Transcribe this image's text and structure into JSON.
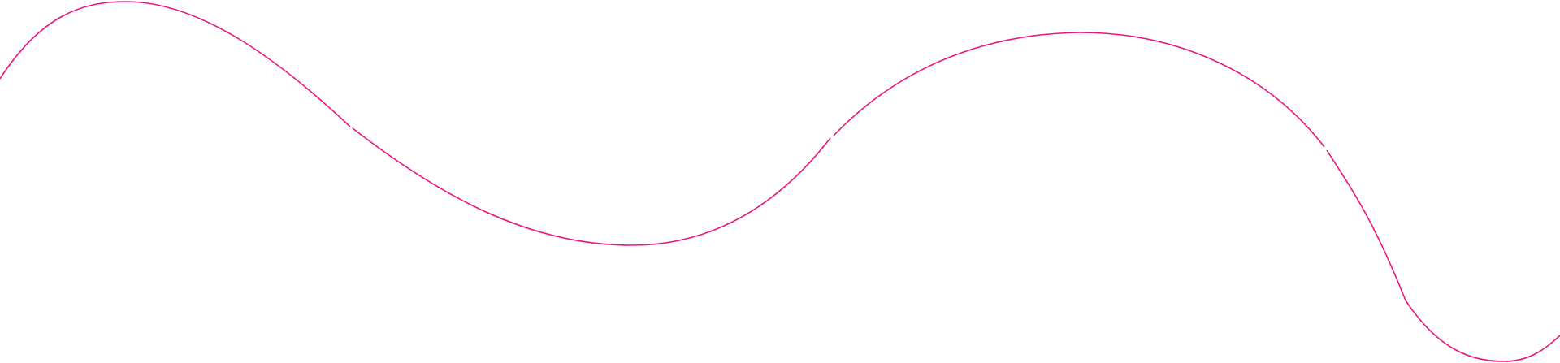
{
  "decoration": {
    "type": "wavy-line",
    "stroke_color": "#e8177f",
    "background_color": "#ffffff",
    "segments": 4
  }
}
